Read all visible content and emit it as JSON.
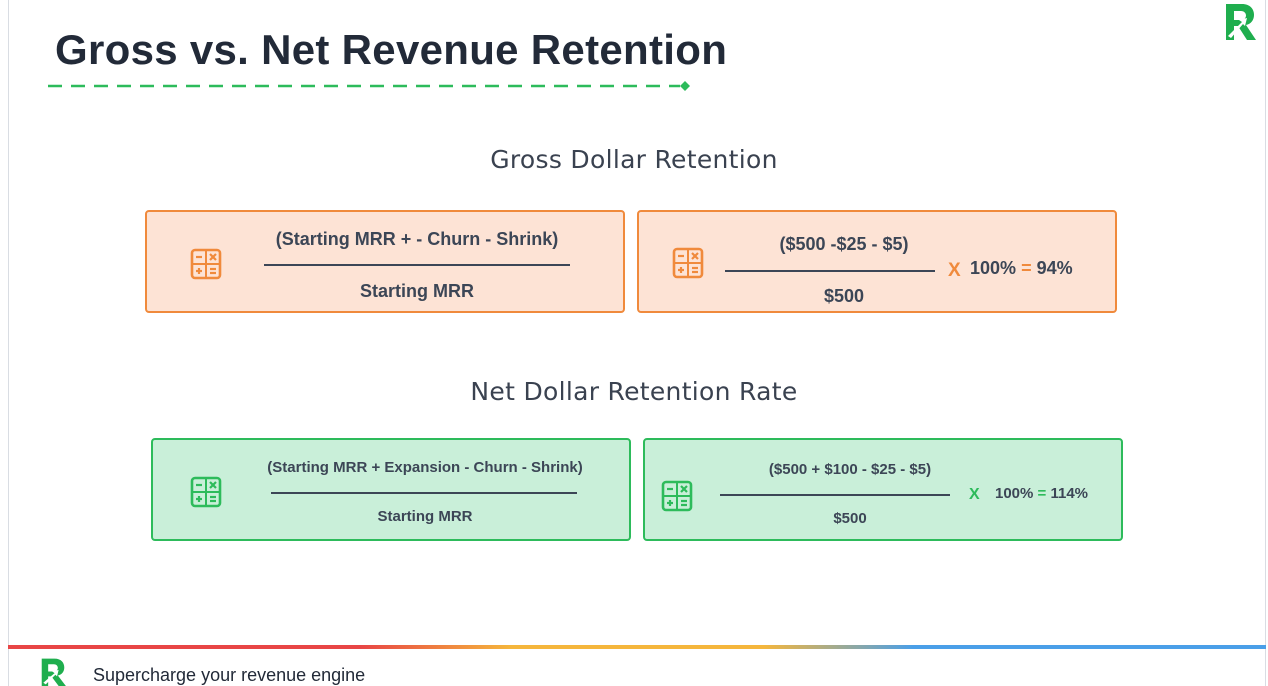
{
  "title": "Gross vs. Net Revenue Retention",
  "gross": {
    "heading": "Gross Dollar Retention",
    "formula": {
      "numerator": "(Starting MRR + - Churn - Shrink)",
      "denominator": "Starting MRR"
    },
    "example": {
      "numerator": "($500 -$25 - $5)",
      "denominator": "$500",
      "times": "X",
      "multiplier": "100%",
      "equals": "=",
      "result": "94%"
    }
  },
  "net": {
    "heading": "Net Dollar Retention Rate",
    "formula": {
      "numerator": "(Starting MRR + Expansion - Churn - Shrink)",
      "denominator": "Starting MRR"
    },
    "example": {
      "numerator": "($500 + $100 - $25 - $5)",
      "denominator": "$500",
      "times": "X",
      "multiplier": "100%",
      "equals": "=",
      "result": "114%"
    }
  },
  "footer": {
    "tagline": "Supercharge your revenue engine"
  },
  "colors": {
    "orange_accent": "#f08a3c",
    "orange_fill": "#fde3d5",
    "green_accent": "#2dbb5b",
    "green_fill": "#c9efd9",
    "title_text": "#222a38"
  },
  "icons": {
    "calculator": "calculator-icon",
    "logo": "brand-r-logo-icon"
  }
}
